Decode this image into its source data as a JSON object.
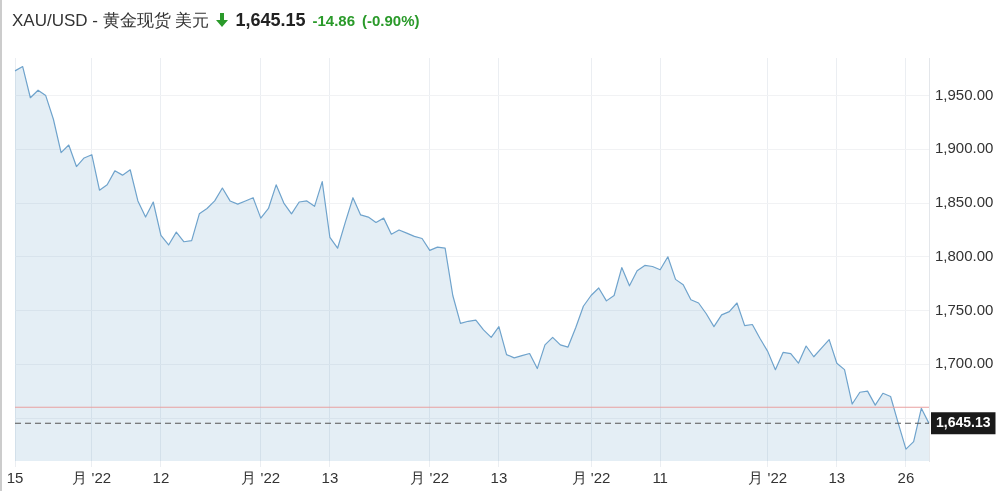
{
  "chart_data": {
    "type": "area",
    "title": "XAU/USD - 黄金现货 美元",
    "annotations": [
      "1,645.15",
      "-14.86",
      "(-0.90%)"
    ],
    "categories": [
      "15",
      null,
      null,
      null,
      null,
      null,
      null,
      null,
      null,
      null,
      "月 '22",
      null,
      null,
      null,
      null,
      null,
      null,
      null,
      null,
      "12",
      null,
      null,
      null,
      null,
      null,
      null,
      null,
      null,
      null,
      null,
      null,
      null,
      "月 '22",
      null,
      null,
      null,
      null,
      null,
      null,
      null,
      null,
      "13",
      null,
      null,
      null,
      null,
      null,
      null,
      null,
      null,
      null,
      null,
      null,
      null,
      "月 '22",
      null,
      null,
      null,
      null,
      null,
      null,
      null,
      null,
      "13",
      null,
      null,
      null,
      null,
      null,
      null,
      null,
      null,
      null,
      null,
      null,
      "月 '22",
      null,
      null,
      null,
      null,
      null,
      null,
      null,
      null,
      "11",
      null,
      null,
      null,
      null,
      null,
      null,
      null,
      null,
      null,
      null,
      null,
      null,
      null,
      "月 '22",
      null,
      null,
      null,
      null,
      null,
      null,
      null,
      null,
      "13",
      null,
      null,
      null,
      null,
      null,
      null,
      null,
      null,
      "26",
      null,
      null,
      null
    ],
    "series": [
      {
        "color": "#6fa3cc",
        "values": [
          1973,
          1977,
          1948,
          1955,
          1950,
          1928,
          1897,
          1904,
          1884,
          1892,
          1895,
          1862,
          1867,
          1880,
          1876,
          1881,
          1852,
          1837,
          1851,
          1820,
          1811,
          1823,
          1814,
          1815,
          1840,
          1845,
          1852,
          1864,
          1852,
          1849,
          1852,
          1855,
          1836,
          1845,
          1867,
          1850,
          1840,
          1851,
          1852,
          1847,
          1870,
          1818,
          1808,
          1832,
          1855,
          1839,
          1837,
          1832,
          1836,
          1821,
          1825,
          1822,
          1819,
          1817,
          1806,
          1809,
          1808,
          1764,
          1738,
          1740,
          1741,
          1732,
          1725,
          1735,
          1709,
          1706,
          1708,
          1710,
          1696,
          1718,
          1725,
          1718,
          1716,
          1734,
          1754,
          1764,
          1771,
          1759,
          1764,
          1790,
          1773,
          1787,
          1792,
          1791,
          1788,
          1800,
          1779,
          1774,
          1760,
          1757,
          1747,
          1735,
          1746,
          1749,
          1757,
          1736,
          1737,
          1724,
          1712,
          1695,
          1711,
          1710,
          1701,
          1717,
          1707,
          1715,
          1723,
          1701,
          1695,
          1663,
          1674,
          1675,
          1662,
          1673,
          1670,
          1645,
          1621,
          1628,
          1659,
          1645
        ]
      }
    ],
    "ylim": [
      1610,
      1985
    ],
    "yticks": [
      {
        "value": 1650,
        "label": null
      },
      {
        "value": 1700,
        "label": "1,700.00"
      },
      {
        "value": 1750,
        "label": "1,750.00"
      },
      {
        "value": 1800,
        "label": "1,800.00"
      },
      {
        "value": 1850,
        "label": "1,850.00"
      },
      {
        "value": 1900,
        "label": "1,900.00"
      },
      {
        "value": 1950,
        "label": "1,950.00"
      }
    ],
    "grid": true,
    "legend": false,
    "marker": "none",
    "ref_lines": [
      {
        "axis": "y",
        "value": 1660,
        "label": null,
        "color": "#e8a0a0",
        "line_style": "solid"
      },
      {
        "axis": "y",
        "value": 1645.13,
        "label": "1,645.13",
        "color": "#555555",
        "line_style": "dashed"
      }
    ]
  }
}
